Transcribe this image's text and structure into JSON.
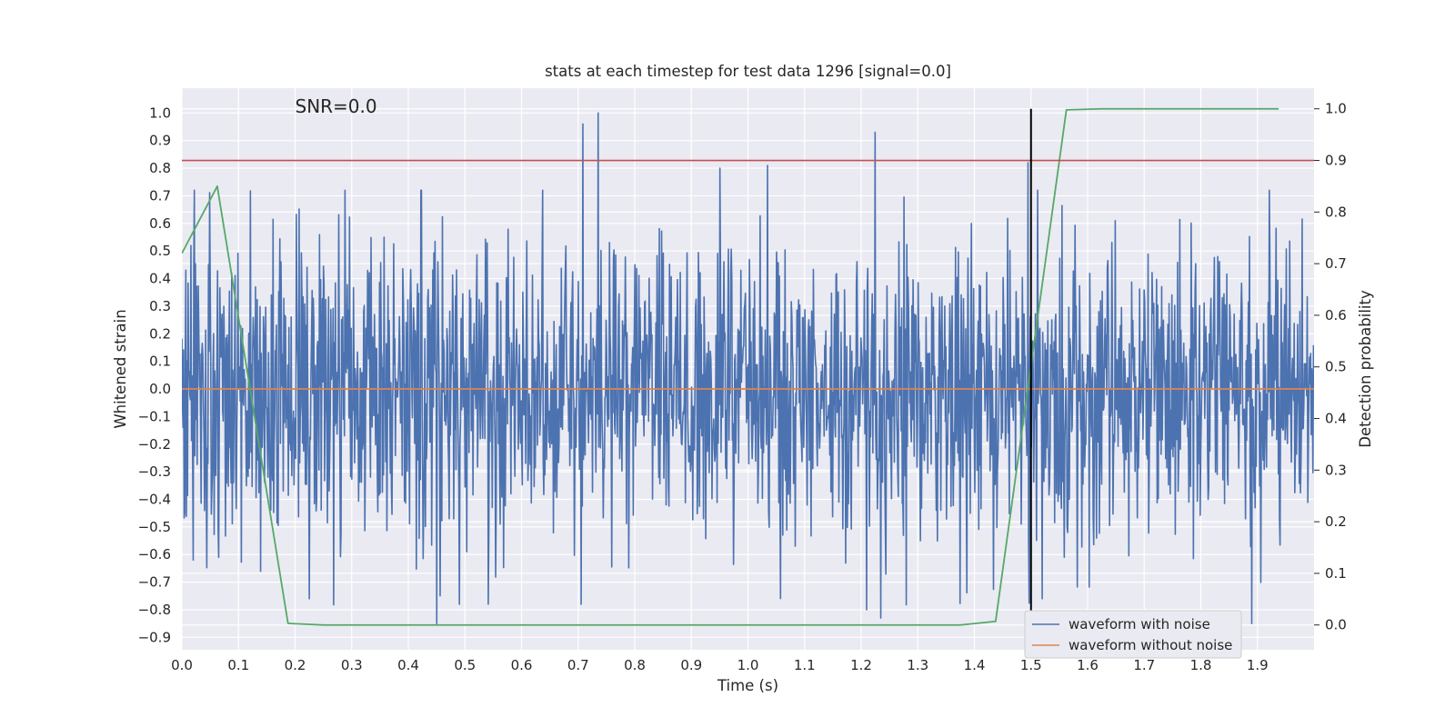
{
  "chart_data": {
    "type": "line",
    "title": "stats at each timestep for test data 1296 [signal=0.0]",
    "xlabel": "Time (s)",
    "ylabel": "Whitened strain",
    "y2label": "Detection probability",
    "annotation": "SNR=0.0",
    "xlim": [
      0.0,
      2.0
    ],
    "ylim": [
      -0.945,
      1.09
    ],
    "y2lim": [
      -0.048,
      1.04
    ],
    "xticks": [
      "0.0",
      "0.1",
      "0.2",
      "0.3",
      "0.4",
      "0.5",
      "0.6",
      "0.7",
      "0.8",
      "0.9",
      "1.0",
      "1.1",
      "1.2",
      "1.3",
      "1.4",
      "1.5",
      "1.6",
      "1.7",
      "1.8",
      "1.9"
    ],
    "xtick_values": [
      0.0,
      0.1,
      0.2,
      0.3,
      0.4,
      0.5,
      0.6,
      0.7,
      0.8,
      0.9,
      1.0,
      1.1,
      1.2,
      1.3,
      1.4,
      1.5,
      1.6,
      1.7,
      1.8,
      1.9
    ],
    "yticks": [
      "1.0",
      "0.9",
      "0.8",
      "0.7",
      "0.6",
      "0.5",
      "0.4",
      "0.3",
      "0.2",
      "0.1",
      "0.0",
      "−0.1",
      "−0.2",
      "−0.3",
      "−0.4",
      "−0.5",
      "−0.6",
      "−0.7",
      "−0.8",
      "−0.9"
    ],
    "ytick_values": [
      1.0,
      0.9,
      0.8,
      0.7,
      0.6,
      0.5,
      0.4,
      0.3,
      0.2,
      0.1,
      0.0,
      -0.1,
      -0.2,
      -0.3,
      -0.4,
      -0.5,
      -0.6,
      -0.7,
      -0.8,
      -0.9
    ],
    "y2ticks": [
      "1.0",
      "0.9",
      "0.8",
      "0.7",
      "0.6",
      "0.5",
      "0.4",
      "0.3",
      "0.2",
      "0.1",
      "0.0"
    ],
    "y2tick_values": [
      1.0,
      0.9,
      0.8,
      0.7,
      0.6,
      0.5,
      0.4,
      0.3,
      0.2,
      0.1,
      0.0
    ],
    "series": [
      {
        "name": "waveform with noise",
        "color": "#4c72b0",
        "axis": "left",
        "noise": {
          "n": 2000,
          "x_end": 2.0,
          "amplitude_range": [
            -0.85,
            1.0
          ],
          "typical_std": 0.27,
          "seed": 1296
        },
        "peaks": [
          {
            "x": 0.708,
            "y": 0.96
          },
          {
            "x": 0.735,
            "y": 1.0
          },
          {
            "x": 1.225,
            "y": 0.93
          },
          {
            "x": 1.495,
            "y": 0.82
          },
          {
            "x": 1.035,
            "y": 0.81
          },
          {
            "x": 0.95,
            "y": 0.8
          },
          {
            "x": 0.45,
            "y": -0.85
          },
          {
            "x": 1.89,
            "y": -0.85
          },
          {
            "x": 1.235,
            "y": -0.83
          },
          {
            "x": 1.21,
            "y": -0.8
          },
          {
            "x": 0.49,
            "y": -0.78
          },
          {
            "x": 0.225,
            "y": -0.76
          },
          {
            "x": 0.705,
            "y": -0.78
          },
          {
            "x": 1.52,
            "y": -0.76
          },
          {
            "x": 0.065,
            "y": 0.71
          },
          {
            "x": 0.02,
            "y": -0.62
          },
          {
            "x": 0.065,
            "y": -0.61
          }
        ]
      },
      {
        "name": "waveform without noise",
        "color": "#dd8452",
        "axis": "left",
        "x": [
          0.0,
          2.0
        ],
        "y": [
          0.0,
          0.0
        ]
      },
      {
        "name": "detection probability",
        "color": "#55a868",
        "axis": "right",
        "x": [
          0.0,
          0.0625,
          0.1875,
          0.25,
          0.3125,
          0.375,
          0.4375,
          0.5,
          0.5625,
          0.625,
          0.6875,
          0.75,
          0.8125,
          0.875,
          0.9375,
          1.0,
          1.0625,
          1.125,
          1.1875,
          1.25,
          1.3125,
          1.375,
          1.4375,
          1.5625,
          1.625,
          1.6875,
          1.75,
          1.8125,
          1.875,
          1.9375
        ],
        "y": [
          0.72,
          0.85,
          0.003,
          0.0,
          0.0,
          0.0,
          0.0,
          0.0,
          0.0,
          0.0,
          0.0,
          0.0,
          0.0,
          0.0,
          0.0,
          0.0,
          0.0,
          0.0,
          0.0,
          0.0,
          0.0,
          0.0,
          0.007,
          0.998,
          1.0,
          1.0,
          1.0,
          1.0,
          1.0,
          1.0
        ]
      }
    ],
    "threshold": {
      "axis": "right",
      "y": 0.9,
      "color": "#c44e52"
    },
    "event_marker": {
      "x": 1.5,
      "color": "#000000",
      "y2_range": [
        0.0,
        1.0
      ]
    },
    "legend": {
      "placement": "lower-right",
      "entries": [
        "waveform with noise",
        "waveform without noise"
      ]
    }
  }
}
